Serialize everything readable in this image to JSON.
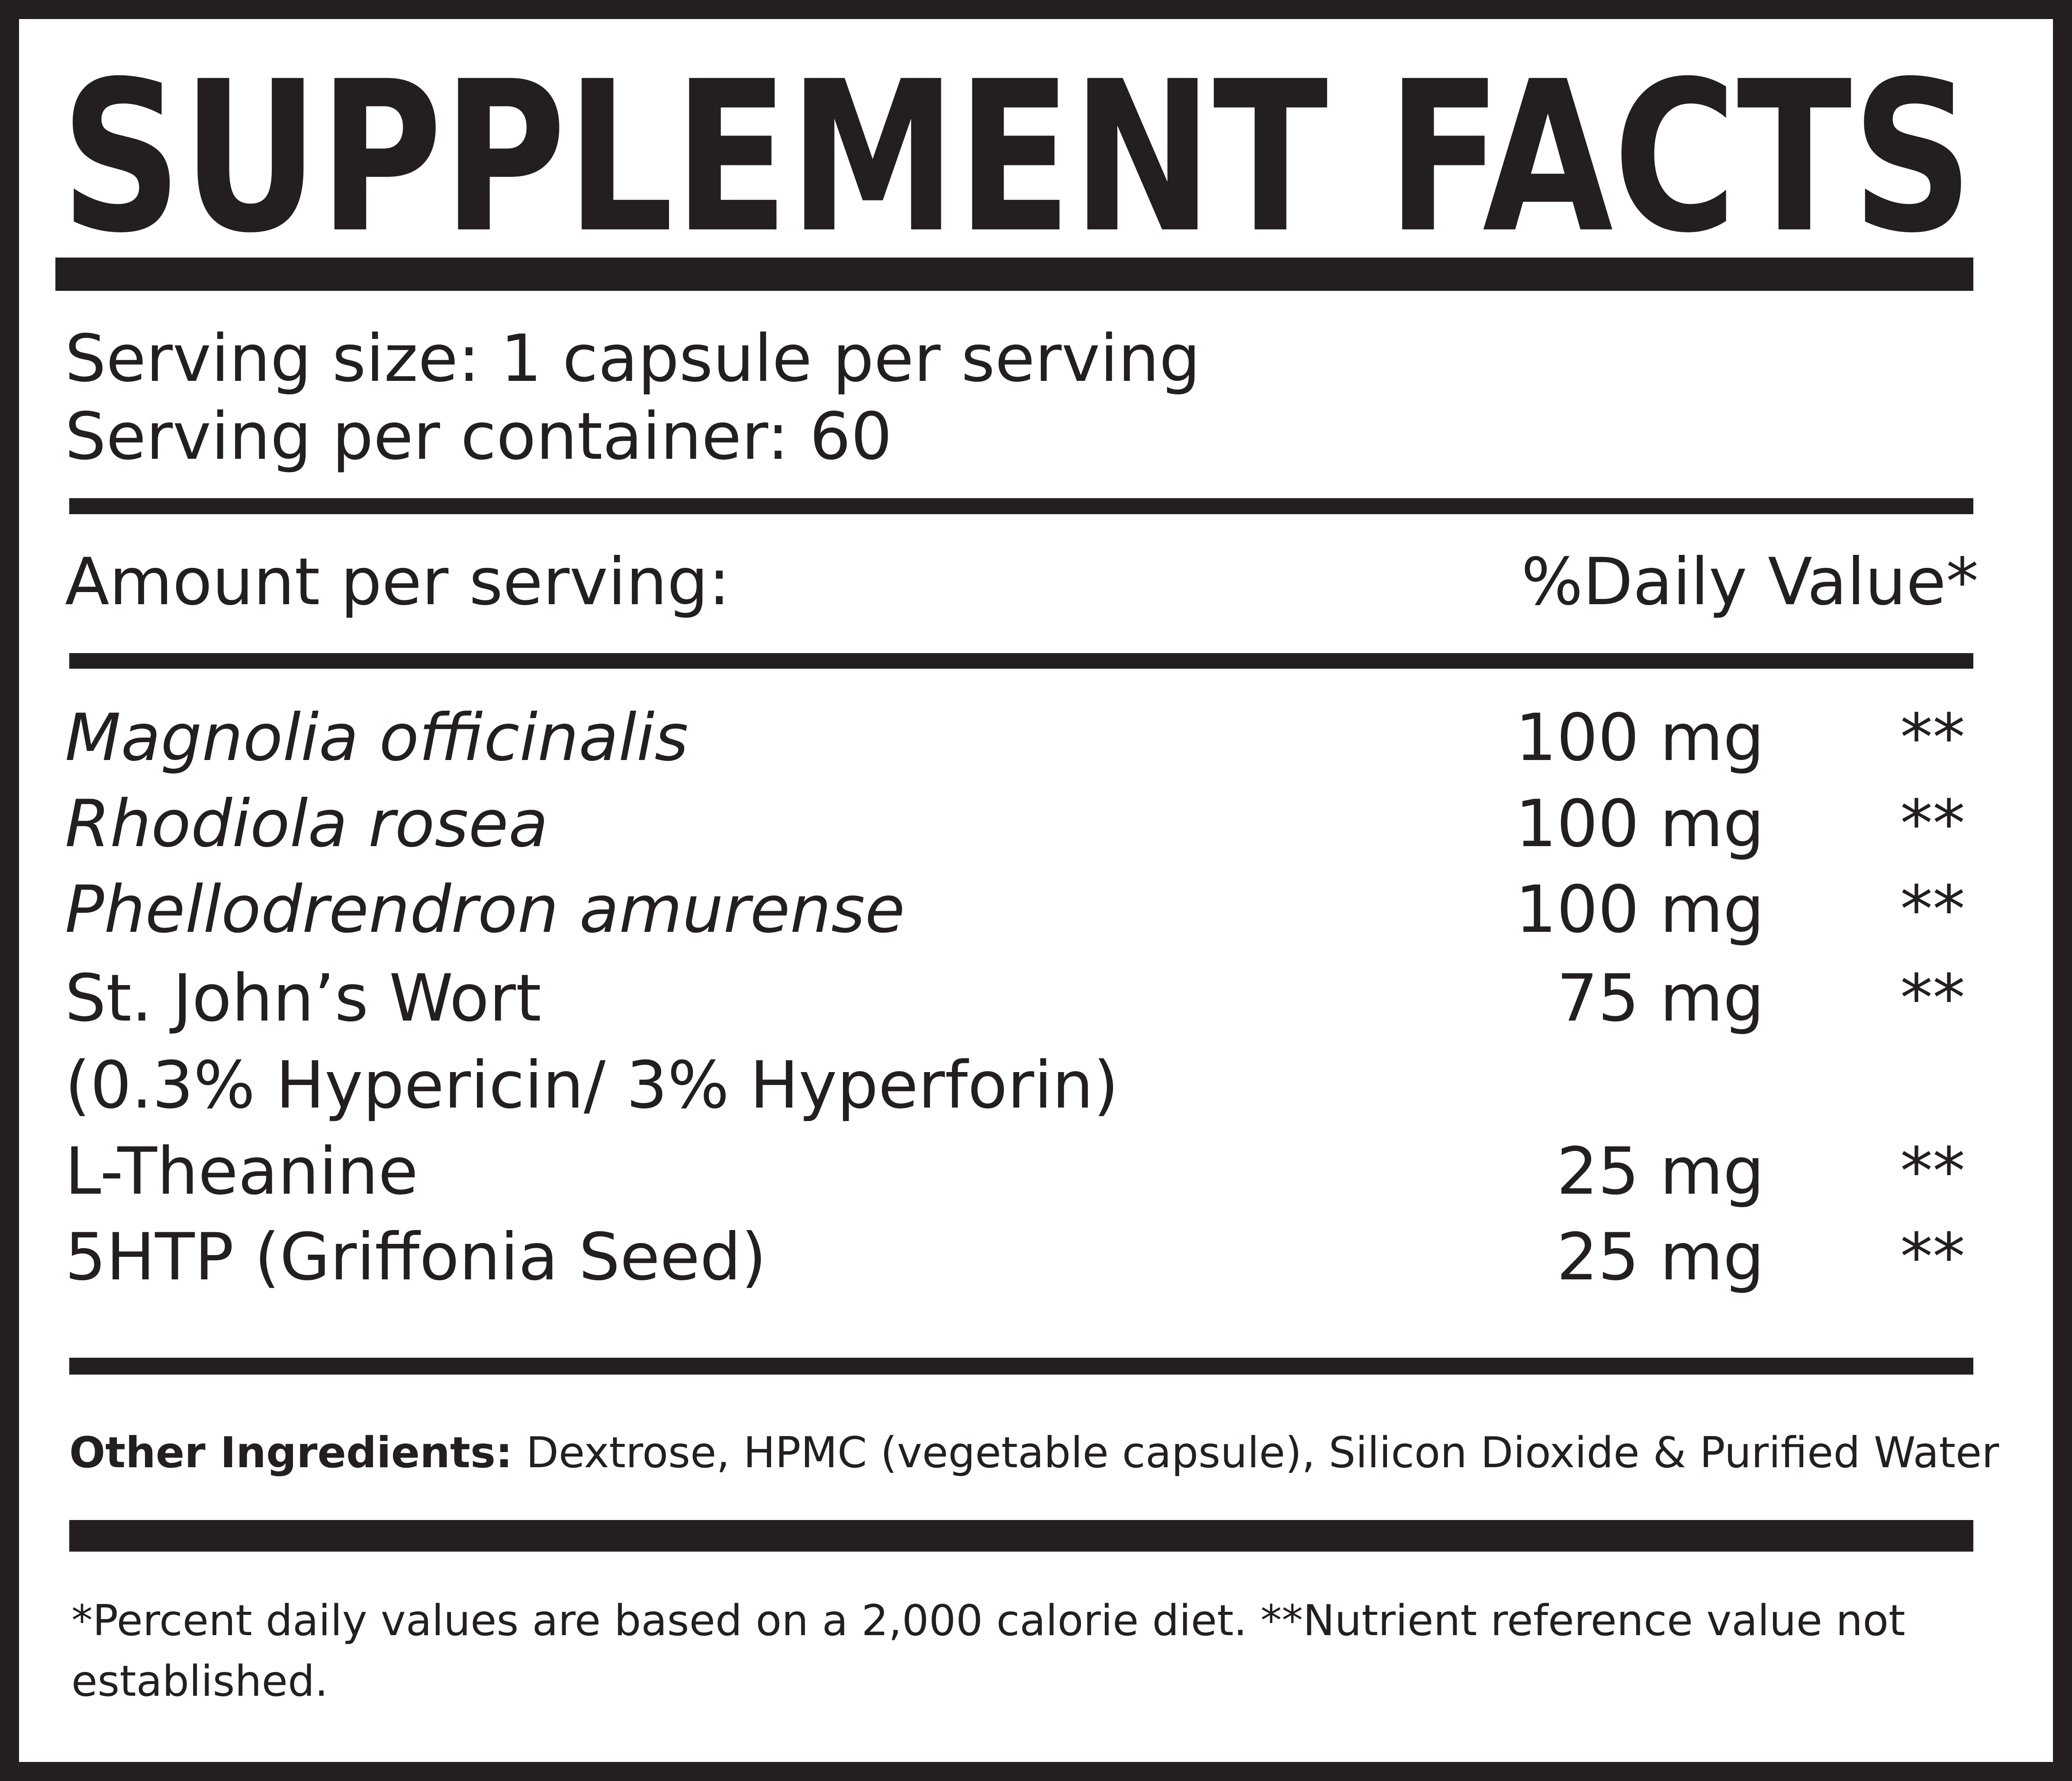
{
  "header": {
    "title": "SUPPLEMENT FACTS"
  },
  "serving": {
    "size": "Serving size: 1 capsule per serving",
    "per_container": "Serving per container: 60"
  },
  "table": {
    "header": [
      "Amount per serving:",
      "%Daily Value*"
    ],
    "rows": [
      [
        "Magnolia officinalis",
        "100 mg",
        "**"
      ],
      [
        "Rhodiola rosea",
        "100 mg",
        "**"
      ],
      [
        "Phellodrendron amurense",
        "100 mg",
        "**"
      ],
      [
        "St. John’s Wort",
        "75 mg",
        "**"
      ],
      [
        "(0.3% Hypericin/ 3% Hyperforin)"
      ],
      [
        "L-Theanine",
        "25 mg",
        "**"
      ],
      [
        "5HTP (Griffonia Seed)",
        "25 mg",
        "**"
      ]
    ]
  },
  "other_ingredients": {
    "label": "Other Ingredients:",
    "text": " Dextrose, HPMC (vegetable capsule), Silicon Dioxide & Purified Water"
  },
  "footnote": [
    "*Percent daily values are based on a 2,000 calorie diet. **Nutrient reference value not",
    "established."
  ]
}
